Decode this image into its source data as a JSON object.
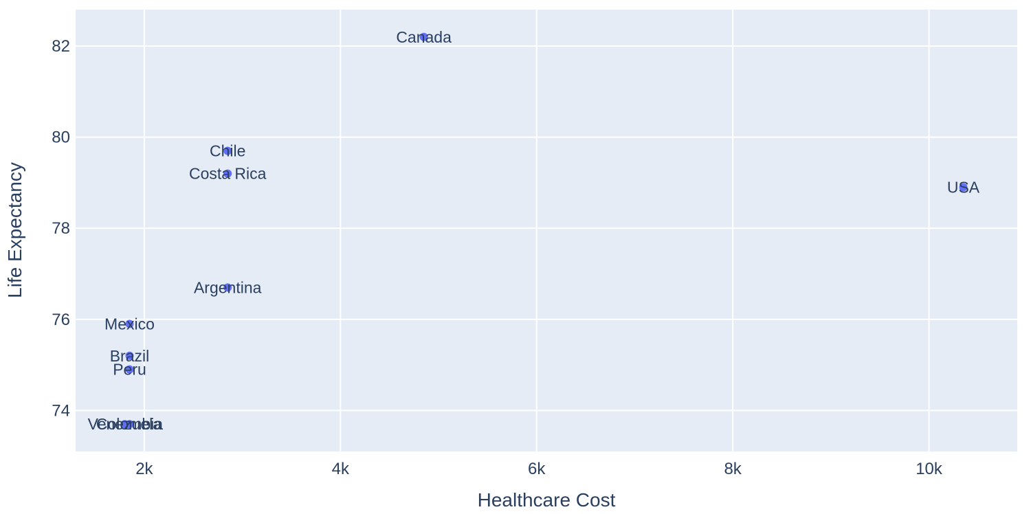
{
  "chart_data": {
    "type": "scatter",
    "title": "",
    "xlabel": "Healthcare Cost",
    "ylabel": "Life Expectancy",
    "xlim": [
      1300,
      10900
    ],
    "ylim": [
      73.1,
      82.8
    ],
    "x_ticks": [
      2000,
      4000,
      6000,
      8000,
      10000
    ],
    "x_tick_labels": [
      "2k",
      "4k",
      "6k",
      "8k",
      "10k"
    ],
    "y_ticks": [
      74,
      76,
      78,
      80,
      82
    ],
    "y_tick_labels": [
      "74",
      "76",
      "78",
      "80",
      "82"
    ],
    "grid": true,
    "legend": "none",
    "colors": {
      "plot_bg": "#e5ecf6",
      "grid": "#ffffff",
      "marker": "#636efa",
      "text": "#2a3f5f"
    },
    "points": [
      {
        "label": "Canada",
        "x": 4850,
        "y": 82.2
      },
      {
        "label": "Chile",
        "x": 2850,
        "y": 79.7
      },
      {
        "label": "Costa Rica",
        "x": 2850,
        "y": 79.2
      },
      {
        "label": "USA",
        "x": 10350,
        "y": 78.9
      },
      {
        "label": "Argentina",
        "x": 2850,
        "y": 76.7
      },
      {
        "label": "Mexico",
        "x": 1850,
        "y": 75.9
      },
      {
        "label": "Brazil",
        "x": 1850,
        "y": 75.2
      },
      {
        "label": "Peru",
        "x": 1850,
        "y": 74.9
      },
      {
        "label": "Venezuela",
        "x": 1800,
        "y": 73.7
      },
      {
        "label": "Colombia",
        "x": 1850,
        "y": 73.7
      }
    ]
  }
}
